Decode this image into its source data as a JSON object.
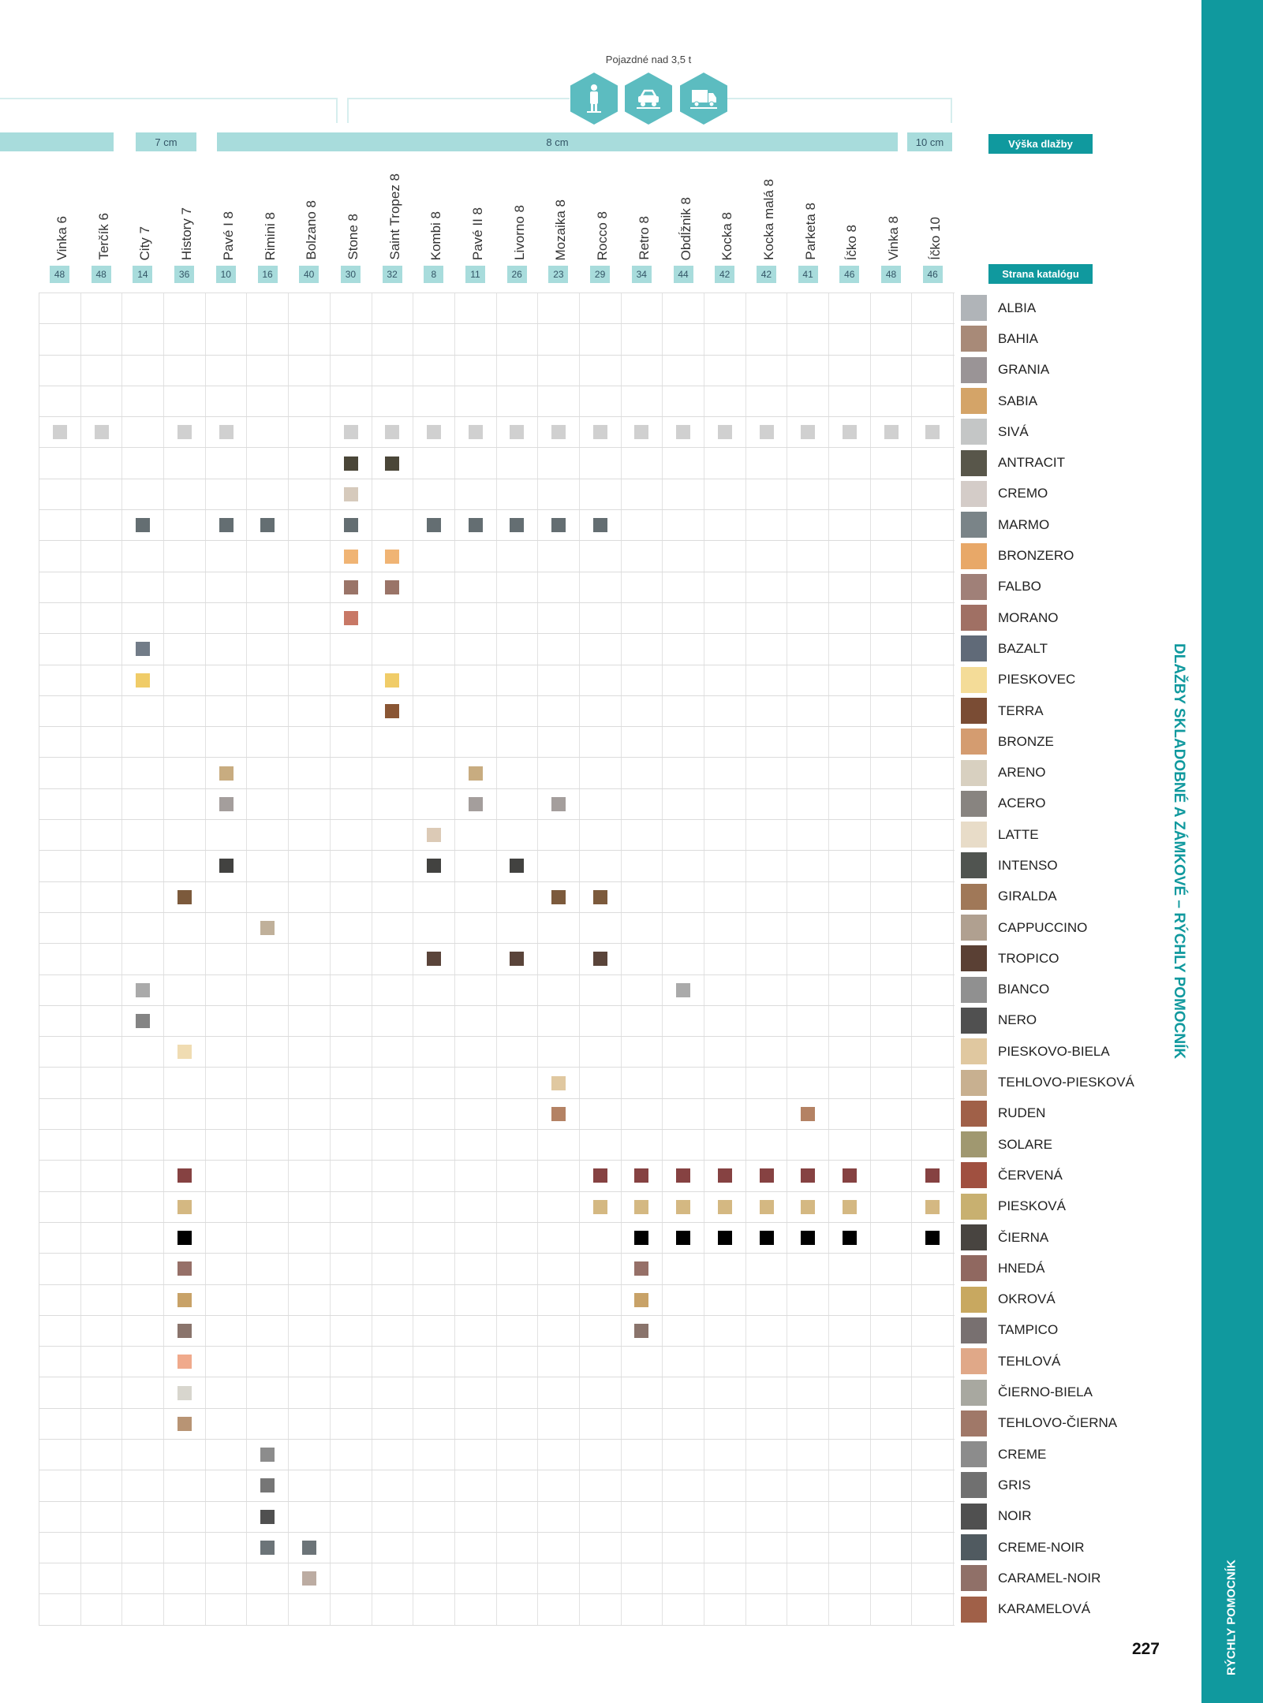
{
  "header": {
    "load_title": "Pojazdné nad 3,5 t",
    "icons": [
      "pedestrian-icon",
      "car-icon",
      "truck-icon"
    ],
    "heights": [
      "",
      "7 cm",
      "8 cm",
      "10 cm"
    ],
    "height_label": "Výška dlažby",
    "page_label": "Strana katalógu"
  },
  "side_title": "DLAŽBY SKLADOBNÉ A ZÁMKOVÉ – RÝCHLY POMOCNÍK",
  "sidebar_label": "RÝCHLY POMOCNÍK",
  "page_number": "227",
  "accent": "#10999e",
  "products": [
    {
      "name": "Vinka 6",
      "page": "48"
    },
    {
      "name": "Terčík 6",
      "page": "48"
    },
    {
      "name": "City 7",
      "page": "14"
    },
    {
      "name": "History 7",
      "page": "36"
    },
    {
      "name": "Pavé I 8",
      "page": "10"
    },
    {
      "name": "Rimini 8",
      "page": "16"
    },
    {
      "name": "Bolzano 8",
      "page": "40"
    },
    {
      "name": "Stone 8",
      "page": "30"
    },
    {
      "name": "Saint Tropez 8",
      "page": "32"
    },
    {
      "name": "Kombi 8",
      "page": "8"
    },
    {
      "name": "Pavé II 8",
      "page": "11"
    },
    {
      "name": "Livorno 8",
      "page": "26"
    },
    {
      "name": "Mozaika 8",
      "page": "23"
    },
    {
      "name": "Rocco 8",
      "page": "29"
    },
    {
      "name": "Retro 8",
      "page": "34"
    },
    {
      "name": "Obdĺžnik 8",
      "page": "44"
    },
    {
      "name": "Kocka 8",
      "page": "42"
    },
    {
      "name": "Kocka malá 8",
      "page": "42"
    },
    {
      "name": "Parketa 8",
      "page": "41"
    },
    {
      "name": "Íčko 8",
      "page": "46"
    },
    {
      "name": "Vinka 8",
      "page": "48"
    },
    {
      "name": "Íčko 10",
      "page": "46"
    }
  ],
  "colors": [
    {
      "name": "ALBIA",
      "swatch": "#b0b4b8",
      "mark": "",
      "available": []
    },
    {
      "name": "BAHIA",
      "swatch": "#a88a78",
      "mark": "",
      "available": []
    },
    {
      "name": "GRANIA",
      "swatch": "#9a9496",
      "mark": "",
      "available": []
    },
    {
      "name": "SABIA",
      "swatch": "#d4a468",
      "mark": "",
      "available": []
    },
    {
      "name": "SIVÁ",
      "swatch": "#c4c6c6",
      "mark": "#d0d0d0",
      "available": [
        0,
        1,
        3,
        4,
        7,
        8,
        9,
        10,
        11,
        12,
        13,
        14,
        15,
        16,
        17,
        18,
        19,
        20,
        21
      ]
    },
    {
      "name": "ANTRACIT",
      "swatch": "#58564a",
      "mark": "#4a4638",
      "available": [
        7,
        8
      ]
    },
    {
      "name": "CREMO",
      "swatch": "#d4ccc8",
      "mark": "#d6cabc",
      "available": [
        7
      ]
    },
    {
      "name": "MARMO",
      "swatch": "#7a8488",
      "mark": "#646e72",
      "available": [
        2,
        4,
        5,
        7,
        9,
        10,
        11,
        12,
        13
      ]
    },
    {
      "name": "BRONZERO",
      "swatch": "#e8a868",
      "mark": "#f0b474",
      "available": [
        7,
        8
      ]
    },
    {
      "name": "FALBO",
      "swatch": "#a08078",
      "mark": "#9a7468",
      "available": [
        7,
        8
      ]
    },
    {
      "name": "MORANO",
      "swatch": "#a07064",
      "mark": "#c87866",
      "available": [
        7
      ]
    },
    {
      "name": "BAZALT",
      "swatch": "#606a78",
      "mark": "#727c88",
      "available": [
        2
      ]
    },
    {
      "name": "PIESKOVEC",
      "swatch": "#f4dc98",
      "mark": "#f0cc68",
      "available": [
        2,
        8
      ]
    },
    {
      "name": "TERRA",
      "swatch": "#7a4c34",
      "mark": "#8a5634",
      "available": [
        8
      ]
    },
    {
      "name": "BRONZE",
      "swatch": "#d49c70",
      "mark": "",
      "available": []
    },
    {
      "name": "ARENO",
      "swatch": "#d8d0c0",
      "mark": "#c8ac80",
      "available": [
        4,
        10
      ]
    },
    {
      "name": "ACERO",
      "swatch": "#888480",
      "mark": "#a49e9c",
      "available": [
        4,
        10,
        12
      ]
    },
    {
      "name": "LATTE",
      "swatch": "#e8dcc8",
      "mark": "#dccab6",
      "available": [
        9
      ]
    },
    {
      "name": "INTENSO",
      "swatch": "#505450",
      "mark": "#424240",
      "available": [
        4,
        9,
        11
      ]
    },
    {
      "name": "GIRALDA",
      "swatch": "#a07858",
      "mark": "#7c5a3c",
      "available": [
        3,
        12,
        13
      ]
    },
    {
      "name": "CAPPUCCINO",
      "swatch": "#b0a090",
      "mark": "#c0b09a",
      "available": [
        5
      ]
    },
    {
      "name": "TROPICO",
      "swatch": "#5a4034",
      "mark": "#5a443a",
      "available": [
        9,
        11,
        13
      ]
    },
    {
      "name": "BIANCO",
      "swatch": "#909090",
      "mark": "#aaaaaa",
      "available": [
        2,
        15
      ]
    },
    {
      "name": "NERO",
      "swatch": "#505050",
      "mark": "#848484",
      "available": [
        2
      ]
    },
    {
      "name": "PIESKOVO-BIELA",
      "swatch": "#e0c8a0",
      "mark": "#f0dcb2",
      "available": [
        3
      ]
    },
    {
      "name": "TEHLOVO-PIESKOVÁ",
      "swatch": "#c8b090",
      "mark": "#e0c8a0",
      "available": [
        12
      ]
    },
    {
      "name": "RUDEN",
      "swatch": "#a06048",
      "mark": "#b48264",
      "available": [
        12,
        18
      ]
    },
    {
      "name": "SOLARE",
      "swatch": "#a09870",
      "mark": "",
      "available": []
    },
    {
      "name": "ČERVENÁ",
      "swatch": "#a05040",
      "mark": "#864242",
      "available": [
        3,
        13,
        14,
        15,
        16,
        17,
        18,
        19,
        21
      ]
    },
    {
      "name": "PIESKOVÁ",
      "swatch": "#c8b070",
      "mark": "#d4b882",
      "available": [
        3,
        13,
        14,
        15,
        16,
        17,
        18,
        19,
        21
      ]
    },
    {
      "name": "ČIERNA",
      "swatch": "#484440",
      "mark": "#000000",
      "available": [
        3,
        14,
        15,
        16,
        17,
        18,
        19,
        21
      ]
    },
    {
      "name": "HNEDÁ",
      "swatch": "#906860",
      "mark": "#967068",
      "available": [
        3,
        14
      ]
    },
    {
      "name": "OKROVÁ",
      "swatch": "#c8a860",
      "mark": "#c8a268",
      "available": [
        3,
        14
      ]
    },
    {
      "name": "TAMPICO",
      "swatch": "#787070",
      "mark": "#8a746c",
      "available": [
        3,
        14
      ]
    },
    {
      "name": "TEHLOVÁ",
      "swatch": "#e0a888",
      "mark": "#f0aa8c",
      "available": [
        3
      ]
    },
    {
      "name": "ČIERNO-BIELA",
      "swatch": "#a8a8a0",
      "mark": "#d8d6ce",
      "available": [
        3
      ]
    },
    {
      "name": "TEHLOVO-ČIERNA",
      "swatch": "#a07868",
      "mark": "#b89474",
      "available": [
        3
      ]
    },
    {
      "name": "CREME",
      "swatch": "#8c8c8c",
      "mark": "#8c8c8c",
      "available": [
        5
      ]
    },
    {
      "name": "GRIS",
      "swatch": "#707070",
      "mark": "#767676",
      "available": [
        5
      ]
    },
    {
      "name": "NOIR",
      "swatch": "#505050",
      "mark": "#505050",
      "available": [
        5
      ]
    },
    {
      "name": "CREME-NOIR",
      "swatch": "#505a60",
      "mark": "#6c7478",
      "available": [
        5,
        6
      ]
    },
    {
      "name": "CARAMEL-NOIR",
      "swatch": "#907068",
      "mark": "#bcaca2",
      "available": [
        6
      ]
    },
    {
      "name": "KARAMELOVÁ",
      "swatch": "#a06048",
      "mark": "",
      "available": []
    }
  ]
}
